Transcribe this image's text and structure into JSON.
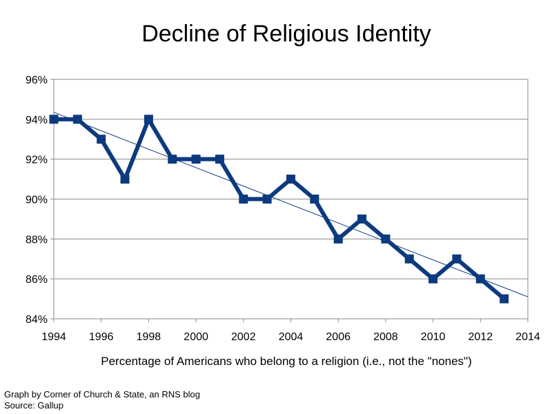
{
  "chart_data": {
    "type": "line",
    "title": "Decline of Religious Identity",
    "xlabel": "Percentage of Americans who belong to a religion (i.e., not the \"nones\")",
    "ylabel": "",
    "xlim": [
      1994,
      2014
    ],
    "ylim": [
      84,
      96
    ],
    "x_ticks": [
      "1994",
      "1996",
      "1998",
      "2000",
      "2002",
      "2004",
      "2006",
      "2008",
      "2010",
      "2012",
      "2014"
    ],
    "y_ticks": [
      "84%",
      "86%",
      "88%",
      "90%",
      "92%",
      "94%",
      "96%"
    ],
    "x_tick_values": [
      1994,
      1996,
      1998,
      2000,
      2002,
      2004,
      2006,
      2008,
      2010,
      2012,
      2014
    ],
    "y_tick_values": [
      84,
      86,
      88,
      90,
      92,
      94,
      96
    ],
    "grid": true,
    "series": [
      {
        "name": "Religious identity",
        "color": "#0d3a7e",
        "marker": "square",
        "x": [
          1994,
          1995,
          1996,
          1997,
          1998,
          1999,
          2000,
          2001,
          2002,
          2003,
          2004,
          2005,
          2006,
          2007,
          2008,
          2009,
          2010,
          2011,
          2012,
          2013
        ],
        "values": [
          94,
          94,
          93,
          91,
          94,
          92,
          92,
          92,
          90,
          90,
          91,
          90,
          88,
          89,
          88,
          87,
          86,
          87,
          86,
          85
        ]
      }
    ],
    "trendline": {
      "type": "linear",
      "color": "#0d3a7e",
      "x": [
        1994,
        2014
      ],
      "values": [
        94.35,
        85.1
      ]
    }
  },
  "footer": {
    "credit": "Graph by Corner of Church & State, an RNS blog",
    "source": "Source: Gallup"
  }
}
